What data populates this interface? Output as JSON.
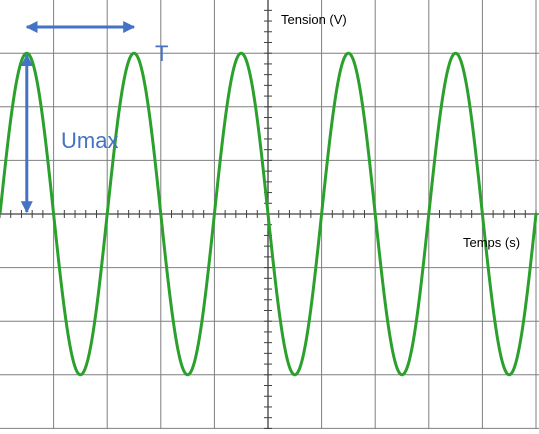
{
  "chart_data": {
    "type": "line",
    "xlabel": "Temps (s)",
    "ylabel": "Tension (V)",
    "grid": true,
    "grid_divisions": {
      "x": 10,
      "y": 8
    },
    "series": [
      {
        "x": [
          0,
          0.5,
          1,
          1.5,
          2,
          2.5,
          3,
          3.5,
          4,
          4.5,
          5,
          5.5,
          6,
          6.5,
          7,
          7.5,
          8,
          8.5,
          9,
          9.5,
          10
        ],
        "values": [
          0,
          3,
          0,
          -3,
          0,
          3,
          0,
          -3,
          0,
          3,
          0,
          -3,
          0,
          3,
          0,
          -3,
          0,
          3,
          0,
          -3,
          0
        ],
        "color": "#2ca02c"
      }
    ],
    "annotations": {
      "period_label": "T",
      "amplitude_label": "Umax",
      "color": "#4472c4"
    }
  }
}
